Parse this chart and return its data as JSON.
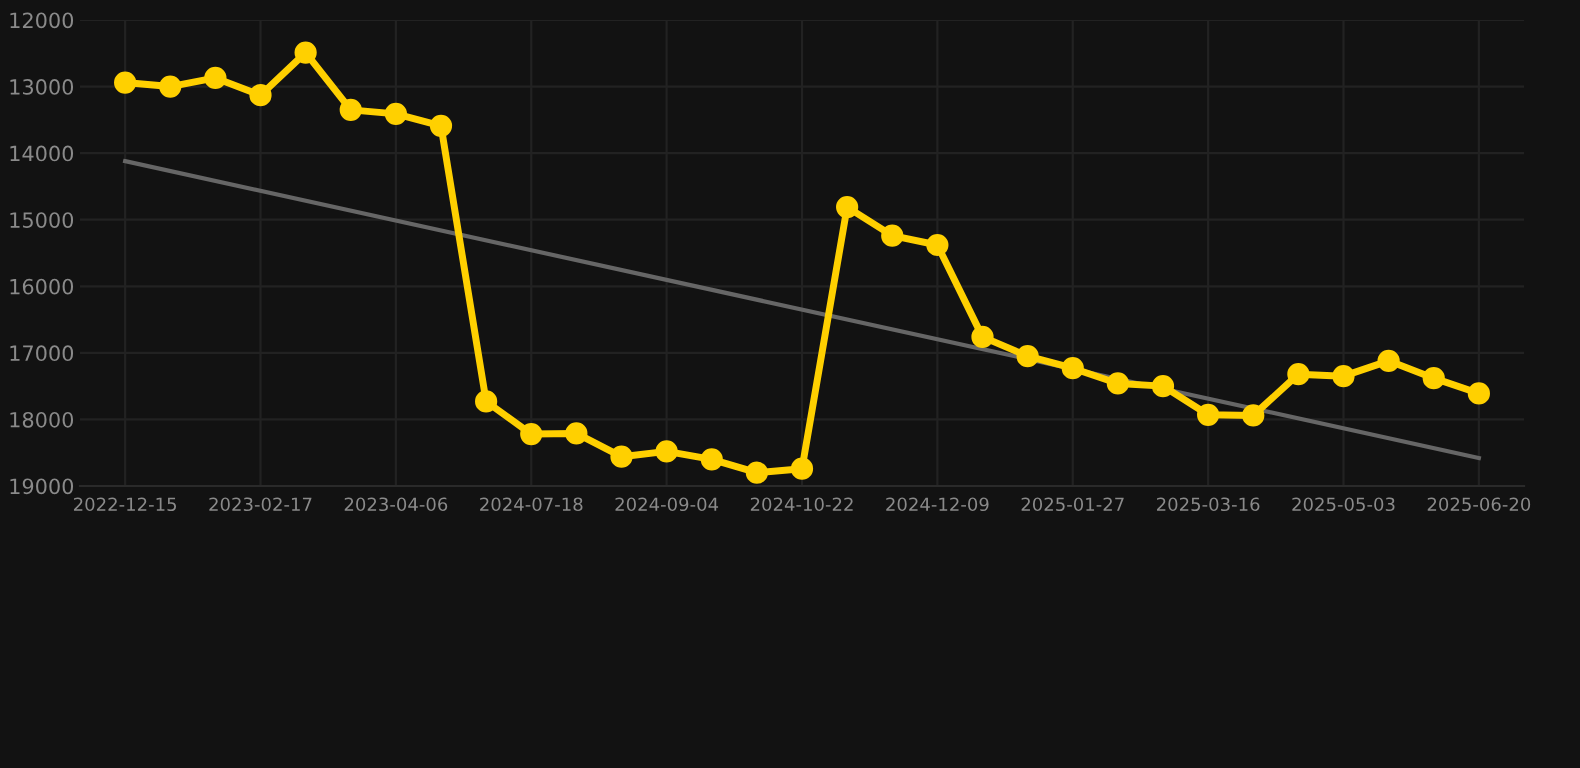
{
  "chart_data": {
    "type": "line",
    "categories": [
      "2022-12-15",
      null,
      null,
      "2023-02-17",
      null,
      null,
      "2023-04-06",
      null,
      null,
      "2024-07-18",
      null,
      null,
      "2024-09-04",
      null,
      null,
      "2024-10-22",
      null,
      null,
      "2024-12-09",
      null,
      null,
      "2025-01-27",
      null,
      null,
      "2025-03-16",
      null,
      null,
      "2025-05-03",
      null,
      null,
      "2025-06-20"
    ],
    "series": [
      {
        "color": "#ffd000",
        "marker": "circle",
        "values": [
          12940,
          13000,
          12870,
          13130,
          12490,
          13350,
          13410,
          13590,
          17730,
          18220,
          18210,
          18560,
          18480,
          18600,
          18800,
          18740,
          14810,
          15240,
          15380,
          16760,
          17050,
          17230,
          17460,
          17500,
          17930,
          17940,
          17320,
          17350,
          17120,
          17380,
          17610
        ]
      },
      {
        "color": "#666666",
        "marker": "none",
        "values": [
          14120,
          null,
          null,
          null,
          null,
          null,
          null,
          null,
          null,
          null,
          null,
          null,
          null,
          null,
          null,
          null,
          null,
          null,
          null,
          null,
          null,
          null,
          null,
          null,
          null,
          null,
          null,
          null,
          null,
          null,
          18580
        ]
      }
    ],
    "ylim": [
      19000,
      12000
    ],
    "yticks": [
      12000,
      13000,
      14000,
      15000,
      16000,
      17000,
      18000,
      19000
    ],
    "grid": true,
    "line_style": "solid"
  }
}
